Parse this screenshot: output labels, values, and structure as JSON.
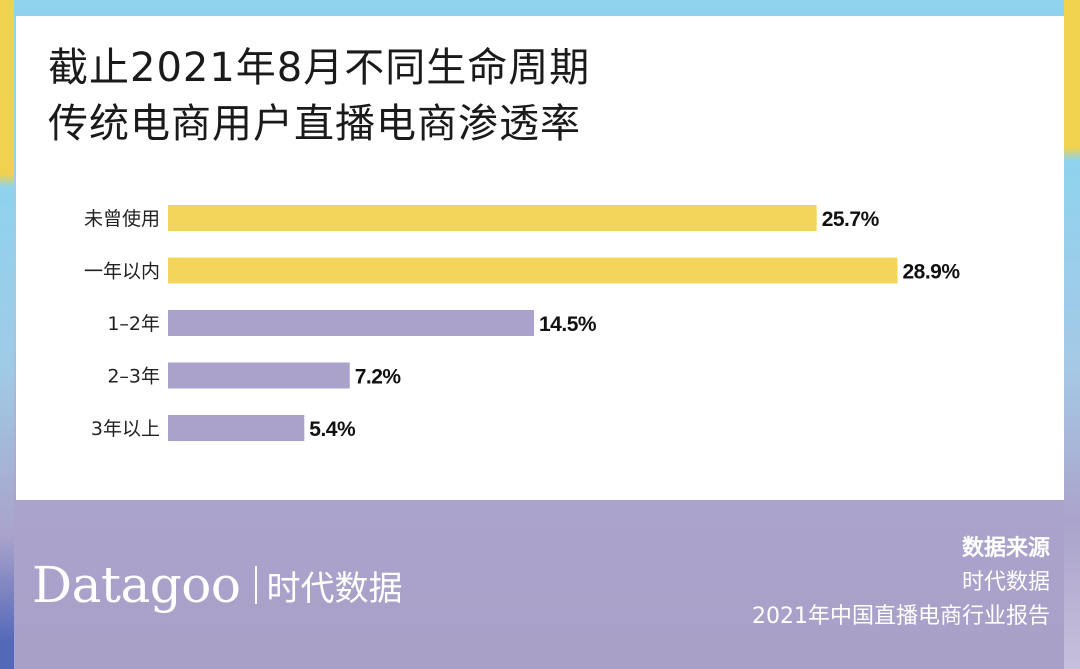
{
  "title": {
    "line1": "截止2021年8月不同生命周期",
    "line2": "传统电商用户直播电商渗透率"
  },
  "chart_data": {
    "type": "bar",
    "orientation": "horizontal",
    "categories": [
      "未曾使用",
      "一年以内",
      "1–2年",
      "2–3年",
      "3年以上"
    ],
    "values": [
      25.7,
      28.9,
      14.5,
      7.2,
      5.4
    ],
    "value_labels": [
      "25.7%",
      "28.9%",
      "14.5%",
      "7.2%",
      "5.4%"
    ],
    "unit": "%",
    "bar_colors": [
      "#f3d55b",
      "#f3d55b",
      "#aaa2cb",
      "#aaa2cb",
      "#aaa2cb"
    ],
    "xlim": [
      0,
      29
    ],
    "grid": false,
    "xlabel": "",
    "ylabel": ""
  },
  "brand": {
    "logo_text": "Datagoo",
    "cn_name": "时代数据"
  },
  "source": {
    "heading": "数据来源",
    "line1": "时代数据",
    "line2": "2021年中国直播电商行业报告"
  }
}
